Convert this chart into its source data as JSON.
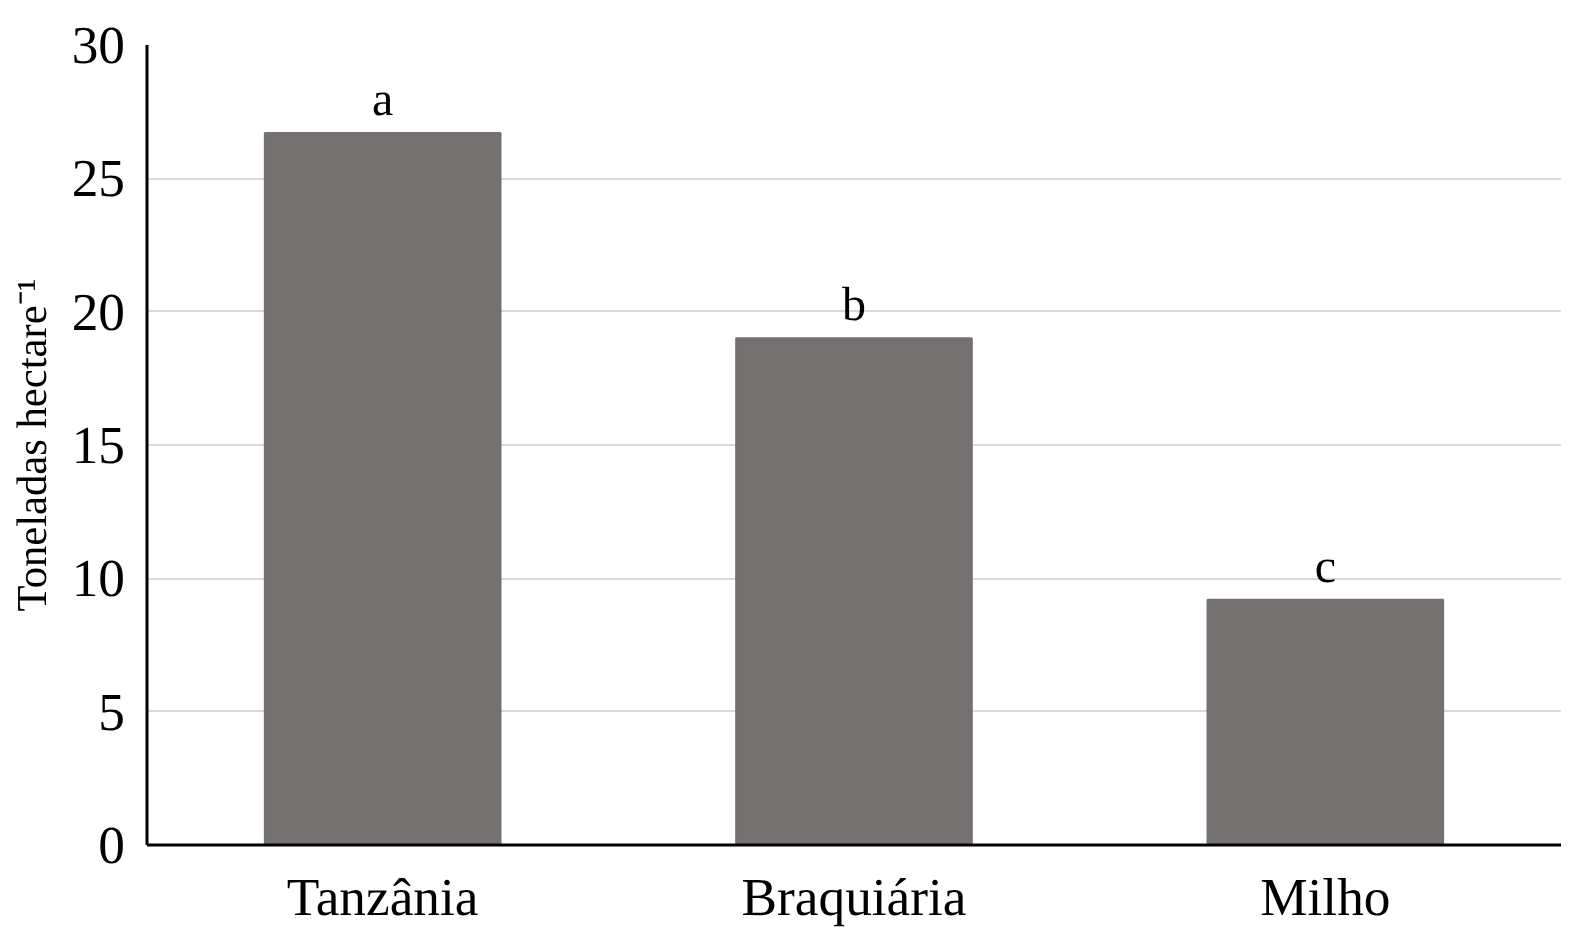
{
  "chart_data": {
    "type": "bar",
    "ylabel": "Toneladas hectare⁻¹",
    "categories": [
      "Tanzânia",
      "Braquiária",
      "Milho"
    ],
    "values": [
      26.7,
      19.0,
      9.2
    ],
    "color": "#767171",
    "ylim": [
      0,
      30
    ],
    "yticks": [
      0,
      5,
      10,
      15,
      20,
      25,
      30
    ],
    "grid": "y",
    "annotations": [
      {
        "text": "a",
        "x": "Tanzânia",
        "y": 26.7
      },
      {
        "text": "b",
        "x": "Braquiária",
        "y": 19.0
      },
      {
        "text": "c",
        "x": "Milho",
        "y": 9.2
      }
    ]
  }
}
